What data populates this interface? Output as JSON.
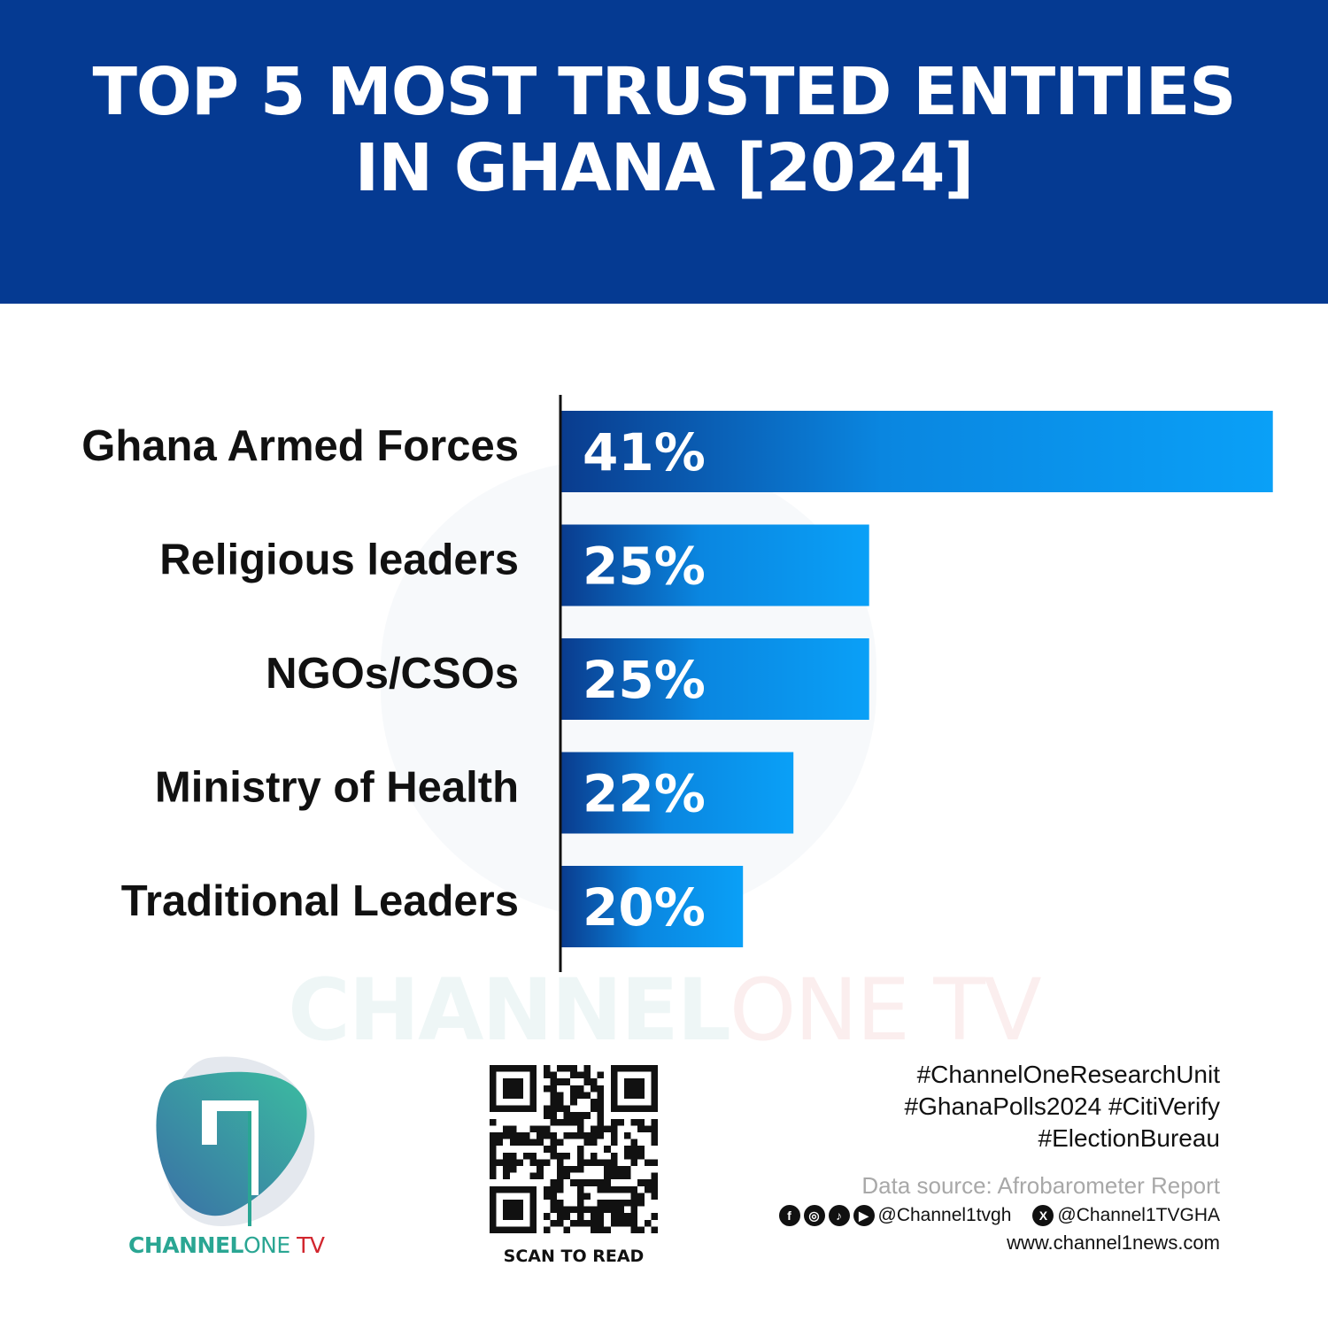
{
  "header": {
    "title_line1": "TOP 5 MOST TRUSTED ENTITIES",
    "title_line2": "IN GHANA [2024]"
  },
  "colors": {
    "header_bg": "#053a92",
    "bar_start": "#0a3c8e",
    "bar_end": "#0aa0f7",
    "brand_teal": "#2aa693",
    "brand_red": "#d2262e"
  },
  "chart_data": {
    "type": "bar",
    "orientation": "horizontal",
    "title": "TOP 5 MOST TRUSTED ENTITIES IN GHANA [2024]",
    "categories": [
      "Ghana Armed Forces",
      "Religious leaders",
      "NGOs/CSOs",
      "Ministry of Health",
      "Traditional Leaders"
    ],
    "values": [
      41,
      25,
      25,
      22,
      20
    ],
    "data_labels": [
      "41%",
      "25%",
      "25%",
      "22%",
      "20%"
    ],
    "unit": "%",
    "grid": false
  },
  "watermark": {
    "part1": "CHANNEL",
    "part2": "ONE",
    "part3": " TV"
  },
  "logo": {
    "text1": "CHANNEL",
    "text2": "ONE",
    "text3": " TV"
  },
  "qr": {
    "caption": "SCAN TO READ"
  },
  "footer": {
    "hashtags": [
      "#ChannelOneResearchUnit",
      "#GhanaPolls2024 #CitiVerify",
      "#ElectionBureau"
    ],
    "source": "Data source: Afrobarometer Report",
    "social_icons": [
      "facebook-icon",
      "instagram-icon",
      "tiktok-icon",
      "youtube-icon"
    ],
    "handle1": "@Channel1tvgh",
    "handle2": "@Channel1TVGHA",
    "website": "www.channel1news.com"
  }
}
